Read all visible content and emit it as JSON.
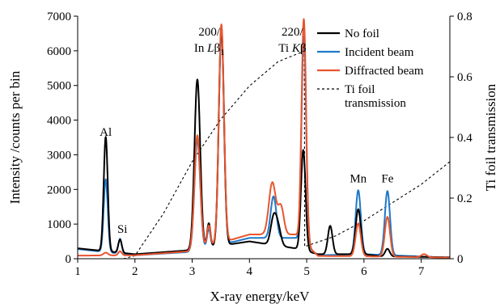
{
  "chart_data": {
    "type": "line",
    "xlabel": "X-ray energy/keV",
    "ylabel": "Intensity /counts per bin",
    "y2label": "Ti foil transmission",
    "xlim": [
      1,
      7.5
    ],
    "ylim": [
      0,
      7000
    ],
    "y2lim": [
      0,
      0.8
    ],
    "x_ticks": [
      "1",
      "2",
      "3",
      "4",
      "5",
      "6",
      "7"
    ],
    "y_ticks": [
      "0",
      "1000",
      "2000",
      "3000",
      "4000",
      "5000",
      "6000",
      "7000"
    ],
    "y2_ticks": [
      "0",
      "0.2",
      "0.4",
      "0.6",
      "0.8"
    ],
    "grid": false,
    "legend_position": "top-right",
    "series": [
      {
        "name": "No foil",
        "color": "#000000",
        "axis": "left",
        "baseline": [
          [
            1,
            300
          ],
          [
            2,
            130
          ],
          [
            3,
            250
          ],
          [
            4,
            500
          ],
          [
            4.8,
            300
          ],
          [
            5.2,
            130
          ],
          [
            6,
            130
          ],
          [
            6.3,
            70
          ],
          [
            7.5,
            40
          ]
        ],
        "peaks": [
          [
            1.49,
            3300,
            0.035
          ],
          [
            1.74,
            380,
            0.03
          ],
          [
            3.09,
            4900,
            0.05
          ],
          [
            3.29,
            700,
            0.03
          ],
          [
            3.51,
            6300,
            0.045
          ],
          [
            4.42,
            750,
            0.05
          ],
          [
            4.5,
            500,
            0.05
          ],
          [
            4.94,
            2900,
            0.04
          ],
          [
            5.41,
            820,
            0.04
          ],
          [
            5.9,
            1300,
            0.045
          ],
          [
            6.41,
            220,
            0.04
          ]
        ]
      },
      {
        "name": "Incident beam",
        "color": "#1f78c8",
        "axis": "left",
        "baseline": [
          [
            1,
            280
          ],
          [
            2,
            100
          ],
          [
            3,
            200
          ],
          [
            4,
            600
          ],
          [
            4.8,
            600
          ],
          [
            5.2,
            100
          ],
          [
            6,
            130
          ],
          [
            7.5,
            30
          ]
        ],
        "peaks": [
          [
            1.49,
            2100,
            0.035
          ],
          [
            1.74,
            430,
            0.03
          ],
          [
            3.09,
            3200,
            0.05
          ],
          [
            3.29,
            550,
            0.03
          ],
          [
            3.51,
            6200,
            0.045
          ],
          [
            4.42,
            1200,
            0.05
          ],
          [
            4.95,
            6000,
            0.04
          ],
          [
            5.9,
            1850,
            0.045
          ],
          [
            6.41,
            1850,
            0.045
          ]
        ]
      },
      {
        "name": "Diffracted beam",
        "color": "#e8552e",
        "axis": "left",
        "baseline": [
          [
            1,
            90
          ],
          [
            2,
            100
          ],
          [
            3,
            220
          ],
          [
            4,
            700
          ],
          [
            4.8,
            700
          ],
          [
            5.2,
            80
          ],
          [
            6,
            70
          ],
          [
            7.5,
            30
          ]
        ],
        "peaks": [
          [
            1.49,
            80,
            0.04
          ],
          [
            1.74,
            120,
            0.03
          ],
          [
            3.09,
            3300,
            0.05
          ],
          [
            3.29,
            600,
            0.03
          ],
          [
            3.51,
            6300,
            0.045
          ],
          [
            4.4,
            1500,
            0.06
          ],
          [
            4.55,
            800,
            0.05
          ],
          [
            4.95,
            6450,
            0.04
          ],
          [
            5.9,
            950,
            0.045
          ],
          [
            6.41,
            1150,
            0.045
          ],
          [
            7.05,
            90,
            0.05
          ]
        ]
      },
      {
        "name": "Ti foil transmission",
        "color": "#000000",
        "axis": "right",
        "dashed": true,
        "points": [
          [
            1.8,
            0.0
          ],
          [
            2.0,
            0.01
          ],
          [
            2.5,
            0.15
          ],
          [
            3.0,
            0.32
          ],
          [
            3.5,
            0.46
          ],
          [
            4.0,
            0.57
          ],
          [
            4.5,
            0.65
          ],
          [
            4.96,
            0.685
          ],
          [
            4.965,
            0.04
          ],
          [
            5.5,
            0.075
          ],
          [
            6.0,
            0.125
          ],
          [
            6.5,
            0.185
          ],
          [
            7.0,
            0.245
          ],
          [
            7.5,
            0.32
          ]
        ]
      }
    ],
    "annotations": [
      {
        "text": "Al",
        "x": 1.49,
        "y": 3550
      },
      {
        "text": "Si",
        "x": 1.78,
        "y": 750
      },
      {
        "text": "Mn",
        "x": 5.9,
        "y": 2200
      },
      {
        "text": "Fe",
        "x": 6.41,
        "y": 2200
      }
    ],
    "peak_labels": [
      {
        "line1": "200/",
        "line2_pre": "In ",
        "line2_italic": "L",
        "line2_post": "β",
        "line2_sub": "1",
        "x": 3.3
      },
      {
        "line1": "220/",
        "line2_pre": "Ti ",
        "line2_italic": "K",
        "line2_post": "β",
        "line2_sub": "",
        "x": 4.75
      }
    ]
  }
}
